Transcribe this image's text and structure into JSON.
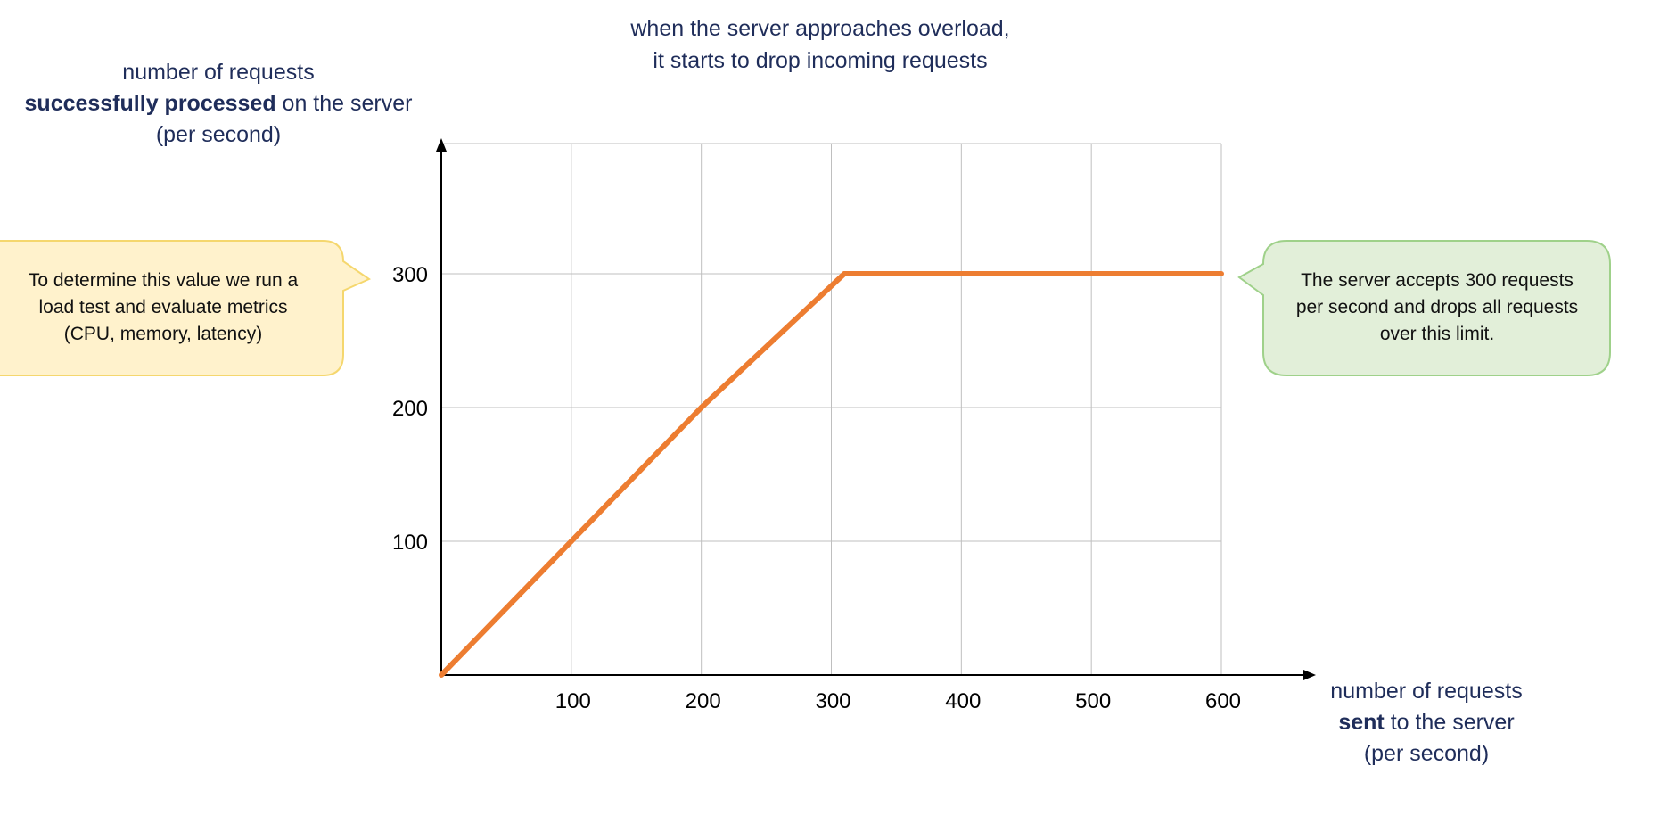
{
  "title": {
    "line1": "when the server approaches overload,",
    "line2": "it starts to drop incoming requests"
  },
  "y_axis_label": {
    "line1": "number of requests",
    "line2_bold": "successfully processed",
    "line2_rest": " on the server",
    "line3": "(per second)"
  },
  "x_axis_label": {
    "line1": "number of requests",
    "line2_bold": "sent",
    "line2_rest": " to the server",
    "line3": "(per second)"
  },
  "callouts": {
    "left": {
      "line1": "To determine this value we run a",
      "line2": "load test and evaluate metrics",
      "line3": "(CPU, memory, latency)",
      "fill": "#fff2cc",
      "stroke": "#f5d76e"
    },
    "right": {
      "line1": "The server accepts 300 requests",
      "line2": "per second and drops all requests",
      "line3": "over this limit.",
      "fill": "#e2efd9",
      "stroke": "#9fd18a"
    }
  },
  "colors": {
    "line": "#ed7d31",
    "grid": "#bfbfbf",
    "axis": "#000000",
    "label": "#1f2d5a"
  },
  "chart_data": {
    "type": "line",
    "x_ticks": [
      "100",
      "200",
      "300",
      "400",
      "500",
      "600"
    ],
    "y_ticks": [
      "100",
      "200",
      "300"
    ],
    "xlim": [
      0,
      600
    ],
    "ylim": [
      0,
      400
    ],
    "grid": true,
    "series": [
      {
        "x": [
          0,
          100,
          200,
          310,
          400,
          500,
          600
        ],
        "y": [
          0,
          100,
          200,
          300,
          300,
          300,
          300
        ]
      }
    ]
  }
}
